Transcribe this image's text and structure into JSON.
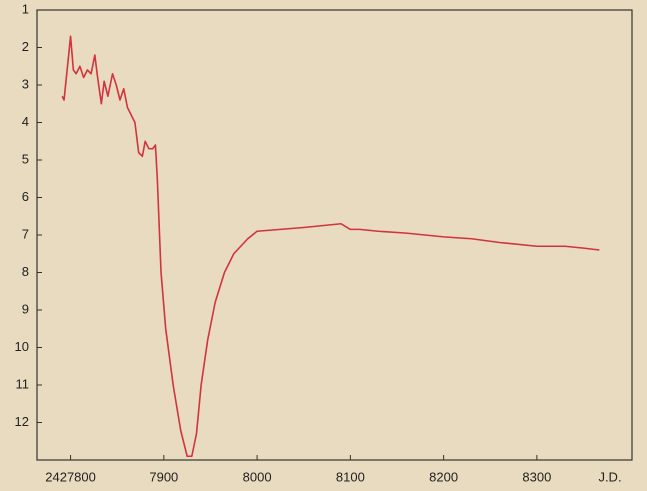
{
  "chart_data": {
    "type": "line",
    "x_label": "J.D.",
    "x": [
      2427791,
      2427793,
      2427800,
      2427803,
      2427806,
      2427810,
      2427814,
      2427818,
      2427822,
      2427826,
      2427829,
      2427833,
      2427836,
      2427840,
      2427845,
      2427849,
      2427853,
      2427857,
      2427861,
      2427865,
      2427869,
      2427873,
      2427877,
      2427880,
      2427884,
      2427888,
      2427891,
      2427893,
      2427897,
      2427902,
      2427910,
      2427918,
      2427925,
      2427930,
      2427935,
      2427940,
      2427947,
      2427955,
      2427965,
      2427975,
      2427990,
      2428000,
      2428050,
      2428090,
      2428100,
      2428110,
      2428130,
      2428160,
      2428200,
      2428230,
      2428260,
      2428300,
      2428330,
      2428350,
      2428367
    ],
    "series": [
      {
        "color": "#d2333f",
        "values": [
          3.3,
          3.4,
          1.7,
          2.6,
          2.7,
          2.5,
          2.8,
          2.6,
          2.7,
          2.2,
          2.8,
          3.5,
          2.9,
          3.3,
          2.7,
          3.0,
          3.4,
          3.1,
          3.6,
          3.8,
          4.0,
          4.8,
          4.9,
          4.5,
          4.7,
          4.7,
          4.6,
          5.5,
          8.0,
          9.5,
          11.0,
          12.2,
          12.9,
          12.9,
          12.3,
          11.0,
          9.8,
          8.8,
          8.0,
          7.5,
          7.1,
          6.9,
          6.8,
          6.7,
          6.85,
          6.85,
          6.9,
          6.95,
          7.05,
          7.1,
          7.2,
          7.3,
          7.3,
          7.35,
          7.4
        ]
      }
    ],
    "xlim": [
      2427764,
      2428402
    ],
    "xticks": [
      2427800,
      {
        "value": 2427900,
        "label": "7900"
      },
      {
        "value": 2428000,
        "label": "8000"
      },
      {
        "value": 2428100,
        "label": "8100"
      },
      {
        "value": 2428200,
        "label": "8200"
      },
      {
        "value": 2428300,
        "label": "8300"
      }
    ],
    "ylim": [
      1,
      13
    ],
    "y_inverted": true,
    "yticks": [
      1,
      2,
      3,
      4,
      5,
      6,
      7,
      8,
      9,
      10,
      11,
      12
    ]
  }
}
